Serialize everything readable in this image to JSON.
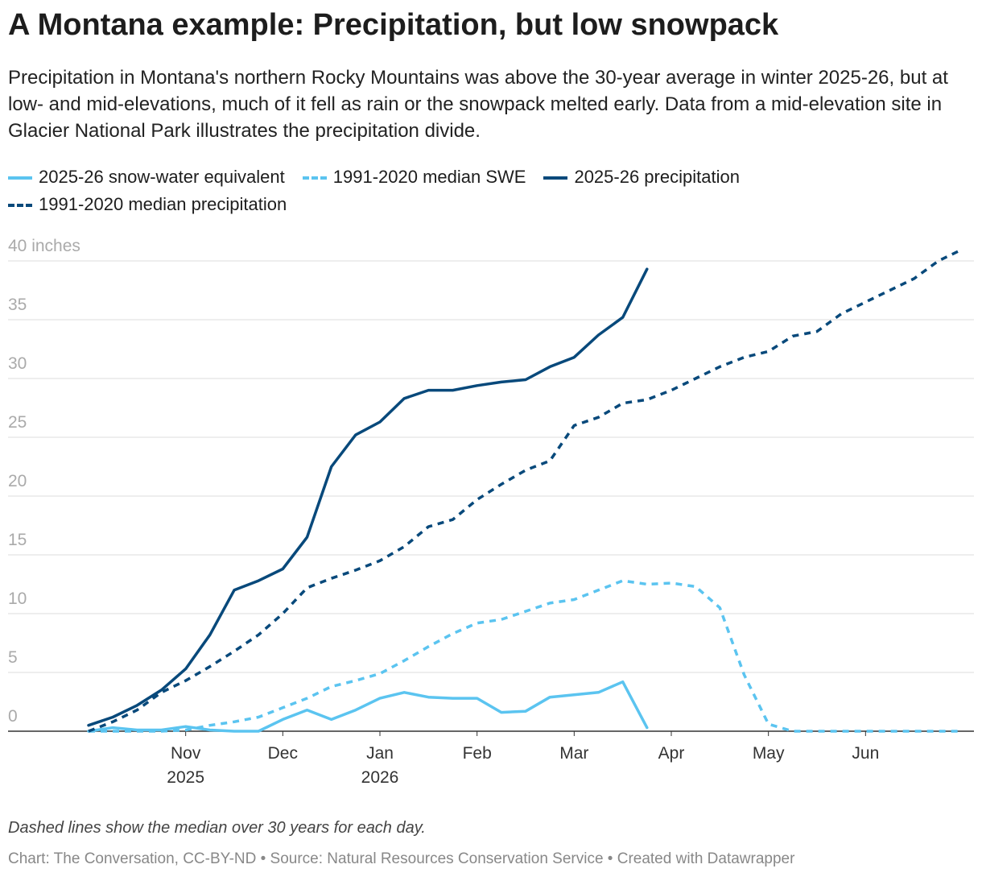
{
  "chart_data": {
    "type": "line",
    "title": "A Montana example: Precipitation, but low snowpack",
    "subtitle": "Precipitation in Montana's northern Rocky Mountains was above the 30-year average in winter 2025-26, but at low- and mid-elevations, much of it fell as rain or the snowpack melted early. Data from a mid-elevation site in Glacier National Park illustrates the precipitation divide.",
    "note": "Dashed lines show the median over 30 years for each day.",
    "footer": "Chart: The Conversation, CC-BY-ND • Source: Natural Resources Conservation Service • Created with Datawrapper",
    "x": [
      0,
      0.25,
      0.5,
      0.75,
      1,
      1.25,
      1.5,
      1.75,
      2,
      2.25,
      2.5,
      2.75,
      3,
      3.25,
      3.5,
      3.75,
      4,
      4.25,
      4.5,
      4.75,
      5,
      5.25,
      5.5,
      5.75,
      6,
      6.25,
      6.5,
      6.75,
      7,
      7.25,
      7.5,
      7.75,
      8,
      8.25,
      8.5,
      8.75,
      9
    ],
    "xlim": [
      0,
      9
    ],
    "xticks": [
      {
        "value": 1,
        "label": "Nov 2025"
      },
      {
        "value": 2,
        "label": "Dec"
      },
      {
        "value": 3,
        "label": "Jan 2026"
      },
      {
        "value": 4,
        "label": "Feb"
      },
      {
        "value": 5,
        "label": "Mar"
      },
      {
        "value": 6,
        "label": "Apr"
      },
      {
        "value": 7,
        "label": "May"
      },
      {
        "value": 8,
        "label": "Jun"
      }
    ],
    "ylim": [
      0,
      40
    ],
    "yticks": [
      0,
      5,
      10,
      15,
      20,
      25,
      30,
      35,
      {
        "value": 40,
        "label": "40 inches"
      }
    ],
    "grid": true,
    "series": [
      {
        "name": "2025-26 snow-water equivalent",
        "color": "#5bc4f0",
        "dashed": false,
        "values": [
          0,
          0.3,
          0.1,
          0.1,
          0.4,
          0.1,
          0,
          0,
          1.0,
          1.8,
          1.0,
          1.8,
          2.8,
          3.3,
          2.9,
          2.8,
          2.8,
          1.6,
          1.7,
          2.9,
          3.1,
          3.3,
          4.2,
          0.3,
          null,
          null,
          null,
          null,
          null,
          null,
          null,
          null,
          null,
          null,
          null,
          null,
          null
        ]
      },
      {
        "name": "1991-2020 median SWE",
        "color": "#5bc4f0",
        "dashed": true,
        "values": [
          0,
          0,
          0,
          0,
          0.1,
          0.5,
          0.8,
          1.2,
          2.0,
          2.8,
          3.8,
          4.3,
          4.9,
          6.0,
          7.2,
          8.3,
          9.2,
          9.5,
          10.2,
          10.9,
          11.2,
          12.0,
          12.8,
          12.5,
          12.6,
          12.3,
          10.5,
          4.8,
          0.6,
          0,
          0,
          0,
          0,
          0,
          0,
          0,
          0
        ]
      },
      {
        "name": "2025-26 precipitation",
        "color": "#08497b",
        "dashed": false,
        "values": [
          0.5,
          1.2,
          2.2,
          3.5,
          5.3,
          8.2,
          12.0,
          12.8,
          13.8,
          16.5,
          22.5,
          25.2,
          26.3,
          28.3,
          29.0,
          29.0,
          29.4,
          29.7,
          29.9,
          31.0,
          31.8,
          33.7,
          35.2,
          39.3,
          null,
          null,
          null,
          null,
          null,
          null,
          null,
          null,
          null,
          null,
          null,
          null,
          null
        ]
      },
      {
        "name": "1991-2020 median precipitation",
        "color": "#08497b",
        "dashed": true,
        "values": [
          0,
          0.8,
          1.8,
          3.3,
          4.3,
          5.5,
          6.8,
          8.2,
          10.0,
          12.2,
          13.0,
          13.7,
          14.5,
          15.7,
          17.4,
          18.0,
          19.7,
          21.0,
          22.2,
          23.0,
          26.0,
          26.7,
          27.9,
          28.2,
          29.0,
          30.0,
          31.0,
          31.8,
          32.3,
          33.6,
          34.0,
          35.5,
          36.5,
          37.5,
          38.5,
          40.0,
          41.0
        ]
      }
    ]
  }
}
